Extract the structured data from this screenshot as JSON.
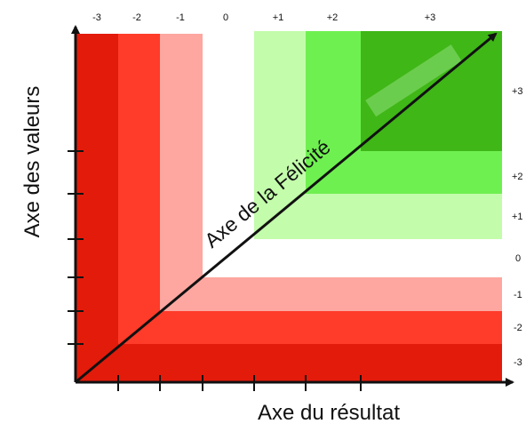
{
  "diagram": {
    "x_axis_title": "Axe du résultat",
    "y_axis_title": "Axe des valeurs",
    "diagonal_label": "Axe de la Félicité",
    "top_ticks": [
      "-3",
      "-2",
      "-1",
      "0",
      "+1",
      "+2",
      "+3"
    ],
    "right_ticks": [
      "+3",
      "+2",
      "+1",
      "0",
      "-1",
      "-2",
      "-3"
    ],
    "colors": {
      "red_dark": "#e31b0b",
      "red_medium": "#ff3b2a",
      "red_light": "#fda7a0",
      "green_dark": "#3fb717",
      "green_medium": "#6ff051",
      "green_light": "#c3fcab",
      "axis": "#111111"
    }
  }
}
